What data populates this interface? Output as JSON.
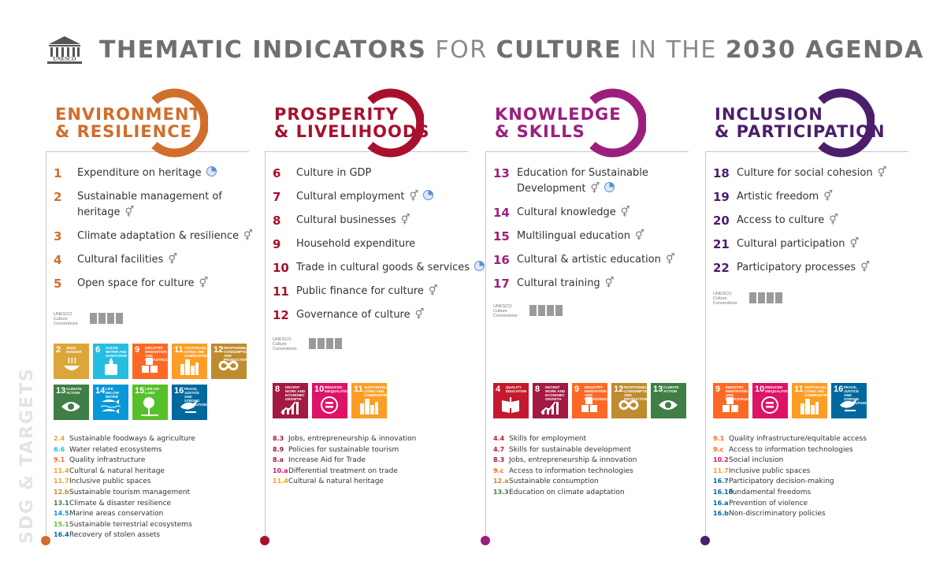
{
  "header": {
    "logo_label": "UNESCO",
    "title_parts": [
      {
        "text": "THEMATIC INDICATORS",
        "bold": true
      },
      {
        "text": "FOR",
        "bold": false
      },
      {
        "text": "CULTURE",
        "bold": true
      },
      {
        "text": "IN THE",
        "bold": false
      },
      {
        "text": "2030 AGENDA",
        "bold": true
      }
    ]
  },
  "side_label": "SDG & TARGETS",
  "conventions_label": "UNESCO Culture Conventions",
  "columns": [
    {
      "id": "env",
      "color": "#d06e2b",
      "title": [
        "ENVIRONMENT",
        "& RESILIENCE"
      ],
      "indicators": [
        {
          "num": "1",
          "label": "Expenditure on heritage",
          "gender": false,
          "pie": true
        },
        {
          "num": "2",
          "label": "Sustainable management of heritage",
          "gender": true,
          "pie": false
        },
        {
          "num": "3",
          "label": "Climate adaptation & resilience",
          "gender": true,
          "pie": false
        },
        {
          "num": "4",
          "label": "Cultural facilities",
          "gender": true,
          "pie": false
        },
        {
          "num": "5",
          "label": "Open space for culture",
          "gender": true,
          "pie": false
        }
      ],
      "sdgs": [
        {
          "n": "2",
          "t": "Zero hunger",
          "c": "#dda63a",
          "icon": "bowl"
        },
        {
          "n": "6",
          "t": "Clean water and sanitation",
          "c": "#26bde2",
          "icon": "drop"
        },
        {
          "n": "9",
          "t": "Industry innovation and infrastructure",
          "c": "#fd6925",
          "icon": "cubes"
        },
        {
          "n": "11",
          "t": "Sustainable cities and communities",
          "c": "#fd9d24",
          "icon": "city"
        },
        {
          "n": "12",
          "t": "Responsible consumption and production",
          "c": "#bf8b2e",
          "icon": "infinity"
        },
        {
          "n": "13",
          "t": "Climate action",
          "c": "#3f7e44",
          "icon": "eye"
        },
        {
          "n": "14",
          "t": "Life below water",
          "c": "#0a97d9",
          "icon": "fish"
        },
        {
          "n": "15",
          "t": "Life on land",
          "c": "#56c02b",
          "icon": "tree"
        },
        {
          "n": "16",
          "t": "Peace, justice and strong institutions",
          "c": "#00689d",
          "icon": "dove"
        }
      ],
      "targets": [
        {
          "code": "2.4",
          "c": "#dda63a",
          "label": "Sustainable foodways & agriculture"
        },
        {
          "code": "6.6",
          "c": "#26bde2",
          "label": "Water related ecosystems"
        },
        {
          "code": "9.1",
          "c": "#fd6925",
          "label": "Quality infrastructure"
        },
        {
          "code": "11.4",
          "c": "#fd9d24",
          "label": "Cultural & natural heritage"
        },
        {
          "code": "11.7",
          "c": "#fd9d24",
          "label": "Inclusive public spaces"
        },
        {
          "code": "12.b",
          "c": "#bf8b2e",
          "label": "Sustainable tourism management"
        },
        {
          "code": "13.1",
          "c": "#3f7e44",
          "label": "Climate & disaster resilience"
        },
        {
          "code": "14.5",
          "c": "#0a97d9",
          "label": "Marine areas conservation"
        },
        {
          "code": "15.1",
          "c": "#56c02b",
          "label": "Sustainable terrestrial ecosystems"
        },
        {
          "code": "16.4",
          "c": "#00689d",
          "label": "Recovery of stolen assets"
        }
      ]
    },
    {
      "id": "pros",
      "color": "#a8102d",
      "title": [
        "PROSPERITY",
        "& LIVELIHOODS"
      ],
      "indicators": [
        {
          "num": "6",
          "label": "Culture in GDP",
          "gender": false,
          "pie": false
        },
        {
          "num": "7",
          "label": "Cultural employment",
          "gender": true,
          "pie": true
        },
        {
          "num": "8",
          "label": "Cultural businesses",
          "gender": true,
          "pie": false
        },
        {
          "num": "9",
          "label": "Household expenditure",
          "gender": false,
          "pie": false
        },
        {
          "num": "10",
          "label": "Trade in cultural goods & services",
          "gender": false,
          "pie": true
        },
        {
          "num": "11",
          "label": "Public finance for culture",
          "gender": true,
          "pie": false
        },
        {
          "num": "12",
          "label": "Governance of culture",
          "gender": true,
          "pie": false
        }
      ],
      "sdgs": [
        {
          "n": "8",
          "t": "Decent work and economic growth",
          "c": "#a21942",
          "icon": "chart"
        },
        {
          "n": "10",
          "t": "Reduced inequalities",
          "c": "#dd1367",
          "icon": "equal"
        },
        {
          "n": "11",
          "t": "Sustainable cities and communities",
          "c": "#fd9d24",
          "icon": "city"
        }
      ],
      "targets": [
        {
          "code": "8.3",
          "c": "#a21942",
          "label": "Jobs, entrepreneurship & innovation"
        },
        {
          "code": "8.9",
          "c": "#a21942",
          "label": "Policies for sustainable tourism"
        },
        {
          "code": "8.a",
          "c": "#a21942",
          "label": "Increase Aid for Trade"
        },
        {
          "code": "10.a",
          "c": "#dd1367",
          "label": "Differential treatment on trade"
        },
        {
          "code": "11.4",
          "c": "#fd9d24",
          "label": "Cultural & natural heritage"
        }
      ]
    },
    {
      "id": "know",
      "color": "#9c1f7e",
      "title": [
        "KNOWLEDGE",
        "& SKILLS"
      ],
      "indicators": [
        {
          "num": "13",
          "label": "Education for Sustainable Development",
          "gender": true,
          "pie": true
        },
        {
          "num": "14",
          "label": "Cultural knowledge",
          "gender": true,
          "pie": false
        },
        {
          "num": "15",
          "label": "Multilingual education",
          "gender": true,
          "pie": false
        },
        {
          "num": "16",
          "label": "Cultural & artistic education",
          "gender": true,
          "pie": false
        },
        {
          "num": "17",
          "label": "Cultural training",
          "gender": true,
          "pie": false
        }
      ],
      "sdgs": [
        {
          "n": "4",
          "t": "Quality education",
          "c": "#c5192d",
          "icon": "book"
        },
        {
          "n": "8",
          "t": "Decent work and economic growth",
          "c": "#a21942",
          "icon": "chart"
        },
        {
          "n": "9",
          "t": "Industry innovation and infrastructure",
          "c": "#fd6925",
          "icon": "cubes"
        },
        {
          "n": "12",
          "t": "Responsible consumption and production",
          "c": "#bf8b2e",
          "icon": "infinity"
        },
        {
          "n": "13",
          "t": "Climate action",
          "c": "#3f7e44",
          "icon": "eye"
        }
      ],
      "targets": [
        {
          "code": "4.4",
          "c": "#c5192d",
          "label": "Skills for employment"
        },
        {
          "code": "4.7",
          "c": "#c5192d",
          "label": "Skills for sustainable development"
        },
        {
          "code": "8.3",
          "c": "#a21942",
          "label": "Jobs, entrepreneurship & innovation"
        },
        {
          "code": "9.c",
          "c": "#fd6925",
          "label": "Access to information technologies"
        },
        {
          "code": "12.a",
          "c": "#bf8b2e",
          "label": "Sustainable consumption"
        },
        {
          "code": "13.3",
          "c": "#3f7e44",
          "label": "Education on climate adaptation"
        }
      ]
    },
    {
      "id": "incl",
      "color": "#4b1e6b",
      "title": [
        "INCLUSION",
        "& PARTICIPATION"
      ],
      "indicators": [
        {
          "num": "18",
          "label": "Culture for social cohesion",
          "gender": true,
          "pie": false
        },
        {
          "num": "19",
          "label": "Artistic freedom",
          "gender": true,
          "pie": false
        },
        {
          "num": "20",
          "label": "Access to culture",
          "gender": true,
          "pie": false
        },
        {
          "num": "21",
          "label": "Cultural participation",
          "gender": true,
          "pie": false
        },
        {
          "num": "22",
          "label": "Participatory processes",
          "gender": true,
          "pie": false
        }
      ],
      "sdgs": [
        {
          "n": "9",
          "t": "Industry innovation and infrastructure",
          "c": "#fd6925",
          "icon": "cubes"
        },
        {
          "n": "10",
          "t": "Reduced inequalities",
          "c": "#dd1367",
          "icon": "equal"
        },
        {
          "n": "11",
          "t": "Sustainable cities and communities",
          "c": "#fd9d24",
          "icon": "city"
        },
        {
          "n": "16",
          "t": "Peace, justice and strong institutions",
          "c": "#00689d",
          "icon": "dove"
        }
      ],
      "targets": [
        {
          "code": "9.1",
          "c": "#fd6925",
          "label": "Quality infrastructure/equitable access"
        },
        {
          "code": "9.c",
          "c": "#fd6925",
          "label": "Access to information technologies"
        },
        {
          "code": "10.2",
          "c": "#dd1367",
          "label": "Social inclusion"
        },
        {
          "code": "11.7",
          "c": "#fd9d24",
          "label": "Inclusive public spaces"
        },
        {
          "code": "16.7",
          "c": "#00689d",
          "label": "Participatory decision-making"
        },
        {
          "code": "16.10",
          "c": "#00689d",
          "label": "Fundamental freedoms"
        },
        {
          "code": "16.a",
          "c": "#00689d",
          "label": "Prevention of violence"
        },
        {
          "code": "16.b",
          "c": "#00689d",
          "label": "Non-discriminatory policies"
        }
      ]
    }
  ]
}
